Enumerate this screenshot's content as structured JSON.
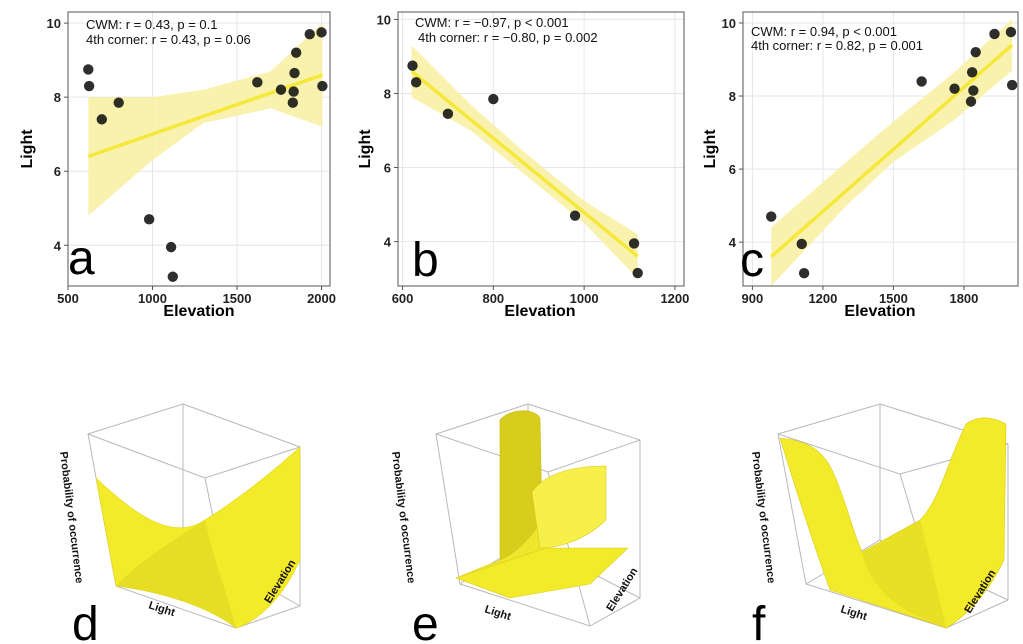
{
  "chart_data": [
    {
      "type": "scatter",
      "panel": "a",
      "xlabel": "Elevation",
      "ylabel": "Light",
      "xlim": [
        500,
        2050
      ],
      "ylim": [
        2.9,
        10.3
      ],
      "xticks": [
        500,
        1000,
        1500,
        2000
      ],
      "yticks": [
        4,
        6,
        8,
        10
      ],
      "annotation": [
        "CWM: r = 0.43, p = 0.1",
        "4th corner: r = 0.43, p = 0.06"
      ],
      "grid": true,
      "points": [
        [
          620,
          8.75
        ],
        [
          625,
          8.3
        ],
        [
          700,
          7.4
        ],
        [
          800,
          7.85
        ],
        [
          980,
          4.7
        ],
        [
          1110,
          3.95
        ],
        [
          1120,
          3.15
        ],
        [
          1620,
          8.4
        ],
        [
          1760,
          8.2
        ],
        [
          1830,
          7.85
        ],
        [
          1835,
          8.15
        ],
        [
          1840,
          8.65
        ],
        [
          1850,
          9.2
        ],
        [
          1930,
          9.7
        ],
        [
          2000,
          9.75
        ],
        [
          2005,
          8.3
        ]
      ],
      "fit": {
        "x": [
          620,
          2005
        ],
        "y": [
          6.4,
          8.6
        ]
      },
      "band_upper": [
        [
          620,
          8.0
        ],
        [
          1000,
          8.0
        ],
        [
          1300,
          8.2
        ],
        [
          1700,
          8.7
        ],
        [
          2005,
          10.0
        ]
      ],
      "band_lower": [
        [
          620,
          4.8
        ],
        [
          1000,
          6.3
        ],
        [
          1300,
          7.3
        ],
        [
          1700,
          7.7
        ],
        [
          2005,
          7.2
        ]
      ],
      "colors": {
        "points": "#111111",
        "line": "#f5e83a",
        "band": "#f8f0a0"
      }
    },
    {
      "type": "scatter",
      "panel": "b",
      "xlabel": "Elevation",
      "ylabel": "Light",
      "xlim": [
        590,
        1220
      ],
      "ylim": [
        2.8,
        10.2
      ],
      "xticks": [
        600,
        800,
        1000,
        1200
      ],
      "yticks": [
        4,
        6,
        8,
        10
      ],
      "annotation": [
        "CWM: r = −0.97, p < 0.001",
        "4th corner: r = −0.80, p = 0.002"
      ],
      "grid": true,
      "points": [
        [
          622,
          8.75
        ],
        [
          630,
          8.3
        ],
        [
          700,
          7.45
        ],
        [
          800,
          7.85
        ],
        [
          980,
          4.7
        ],
        [
          1110,
          3.95
        ],
        [
          1118,
          3.15
        ]
      ],
      "fit": {
        "x": [
          620,
          1118
        ],
        "y": [
          8.6,
          3.6
        ]
      },
      "band_upper": [
        [
          620,
          9.3
        ],
        [
          750,
          7.7
        ],
        [
          870,
          6.4
        ],
        [
          1000,
          5.1
        ],
        [
          1118,
          4.2
        ]
      ],
      "band_lower": [
        [
          620,
          7.9
        ],
        [
          750,
          7.0
        ],
        [
          870,
          5.8
        ],
        [
          1000,
          4.5
        ],
        [
          1118,
          3.0
        ]
      ],
      "colors": {
        "points": "#111111",
        "line": "#f5e83a",
        "band": "#f8f0a0"
      }
    },
    {
      "type": "scatter",
      "panel": "c",
      "xlabel": "Elevation",
      "ylabel": "Light",
      "xlim": [
        860,
        2030
      ],
      "ylim": [
        2.8,
        10.3
      ],
      "xticks": [
        900,
        1200,
        1500,
        1800
      ],
      "yticks": [
        4,
        6,
        8,
        10
      ],
      "annotation": [
        "CWM: r = 0.94, p < 0.001",
        "4th corner:    r = 0.82, p = 0.001"
      ],
      "grid": true,
      "points": [
        [
          980,
          4.7
        ],
        [
          1110,
          3.95
        ],
        [
          1120,
          3.15
        ],
        [
          1620,
          8.4
        ],
        [
          1760,
          8.2
        ],
        [
          1830,
          7.85
        ],
        [
          1835,
          8.65
        ],
        [
          1840,
          8.15
        ],
        [
          1850,
          9.2
        ],
        [
          1930,
          9.7
        ],
        [
          2000,
          9.75
        ],
        [
          2005,
          8.3
        ]
      ],
      "fit": {
        "x": [
          980,
          2005
        ],
        "y": [
          3.6,
          9.4
        ]
      },
      "band_upper": [
        [
          980,
          4.4
        ],
        [
          1300,
          6.2
        ],
        [
          1500,
          7.3
        ],
        [
          1750,
          8.6
        ],
        [
          2005,
          10.1
        ]
      ],
      "band_lower": [
        [
          980,
          2.8
        ],
        [
          1300,
          5.0
        ],
        [
          1500,
          6.2
        ],
        [
          1750,
          7.3
        ],
        [
          2005,
          8.7
        ]
      ],
      "colors": {
        "points": "#111111",
        "line": "#f5e83a",
        "band": "#f8f0a0"
      }
    }
  ],
  "surfaces": [
    {
      "panel": "d",
      "zlabel": "Probability of occurrence",
      "xlabel": "Light",
      "ylabel": "Elevation",
      "color": "#f3ea2a"
    },
    {
      "panel": "e",
      "zlabel": "Probability of occurrence",
      "xlabel": "Light",
      "ylabel": "Elevation",
      "color": "#f3ea2a"
    },
    {
      "panel": "f",
      "zlabel": "Probability of occurrence",
      "xlabel": "Light",
      "ylabel": "Elevation",
      "color": "#f3ea2a"
    }
  ]
}
